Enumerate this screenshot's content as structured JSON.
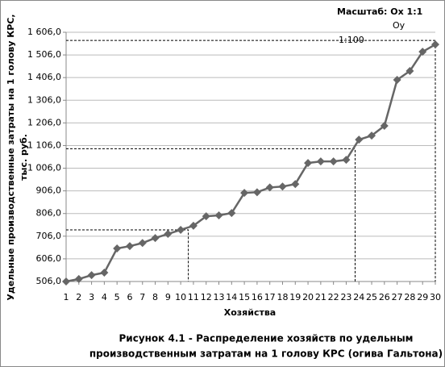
{
  "chart_data": {
    "type": "line",
    "scale_label": "Масштаб: Ox   1:1",
    "scale_oy": "Oy",
    "scale_oy_ratio": "1:100",
    "y_label_lines": [
      "Удельные производственные затраты на 1 голову КРС,",
      "тыс. руб."
    ],
    "x_label": "Хозяйства",
    "caption_lines": [
      "Рисунок 4.1 - Распределение хозяйств по удельным",
      "производственным затратам на 1 голову КРС (огива Гальтона)"
    ],
    "x": [
      1,
      2,
      3,
      4,
      5,
      6,
      7,
      8,
      9,
      10,
      11,
      12,
      13,
      14,
      15,
      16,
      17,
      18,
      19,
      20,
      21,
      22,
      23,
      24,
      25,
      26,
      27,
      28,
      29,
      30
    ],
    "series": [
      {
        "color": "#666666",
        "values": [
          506,
          517,
          534,
          545,
          652,
          662,
          676,
          698,
          716,
          734,
          752,
          794,
          798,
          808,
          897,
          900,
          921,
          925,
          936,
          1029,
          1036,
          1036,
          1043,
          1132,
          1150,
          1193,
          1396,
          1435,
          1520,
          1552
        ]
      }
    ],
    "reference_lines": [
      {
        "x": 10.6,
        "y": 734
      },
      {
        "x": 23.7,
        "y": 1092
      },
      {
        "x": 30,
        "y": 1570
      }
    ],
    "xlim": [
      1,
      30
    ],
    "xticks": [
      1,
      2,
      3,
      4,
      5,
      6,
      7,
      8,
      9,
      10,
      11,
      12,
      13,
      14,
      15,
      16,
      17,
      18,
      19,
      20,
      21,
      22,
      23,
      24,
      25,
      26,
      27,
      28,
      29,
      30
    ],
    "ylim": [
      506,
      1606
    ],
    "yticks": [
      {
        "value": 506,
        "label": "506,0"
      },
      {
        "value": 606,
        "label": "606,0"
      },
      {
        "value": 706,
        "label": "706,0"
      },
      {
        "value": 806,
        "label": "806,0"
      },
      {
        "value": 906,
        "label": "906,0"
      },
      {
        "value": 1006,
        "label": "1 006,0"
      },
      {
        "value": 1106,
        "label": "1 106,0"
      },
      {
        "value": 1206,
        "label": "1 206,0"
      },
      {
        "value": 1306,
        "label": "1 306,0"
      },
      {
        "value": 1406,
        "label": "1 406,0"
      },
      {
        "value": 1506,
        "label": "1 506,0"
      },
      {
        "value": 1606,
        "label": "1 606,0"
      }
    ],
    "grid": true
  }
}
